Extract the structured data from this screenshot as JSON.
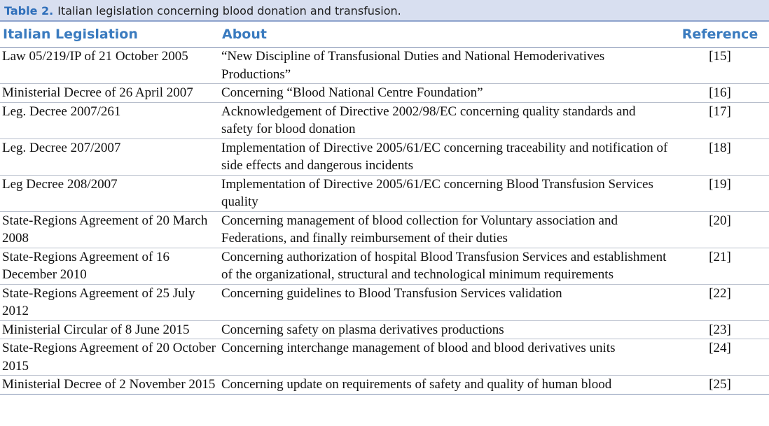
{
  "caption": {
    "label": "Table 2.",
    "text": "Italian legislation concerning blood donation and transfusion."
  },
  "table": {
    "headers": [
      "Italian Legislation",
      "About",
      "Reference"
    ],
    "rows": [
      [
        "Law 05/219/IP of 21 October 2005",
        "“New Discipline of Transfusional Duties and National Hemoderivatives Productions”",
        "[15]"
      ],
      [
        "Ministerial Decree of 26 April 2007",
        "Concerning “Blood National Centre Foundation”",
        "[16]"
      ],
      [
        "Leg. Decree 2007/261",
        "Acknowledgement of Directive 2002/98/EC concerning quality standards and safety for blood donation",
        "[17]"
      ],
      [
        "Leg. Decree 207/2007",
        "Implementation of Directive 2005/61/EC concerning traceability and notification of side effects and dangerous incidents",
        "[18]"
      ],
      [
        "Leg Decree 208/2007",
        "Implementation of Directive 2005/61/EC concerning Blood Transfusion Services quality",
        "[19]"
      ],
      [
        "State-Regions Agreement of 20 March 2008",
        "Concerning management of blood collection for Voluntary association and Federations, and finally reimbursement of their duties",
        "[20]"
      ],
      [
        "State-Regions Agreement of 16 December 2010",
        "Concerning authorization of hospital Blood Transfusion Services and establishment of the organizational, structural and technological minimum requirements",
        "[21]"
      ],
      [
        "State-Regions Agreement of 25 July 2012",
        "Concerning guidelines to Blood Transfusion Services validation",
        "[22]"
      ],
      [
        "Ministerial Circular of 8 June 2015",
        "Concerning safety on plasma derivatives productions",
        "[23]"
      ],
      [
        "State-Regions Agreement of 20 October 2015",
        "Concerning interchange management of blood and blood derivatives units",
        "[24]"
      ],
      [
        "Ministerial Decree of 2 November 2015",
        "Concerning update on requirements of safety and quality of human blood",
        "[25]"
      ]
    ]
  }
}
